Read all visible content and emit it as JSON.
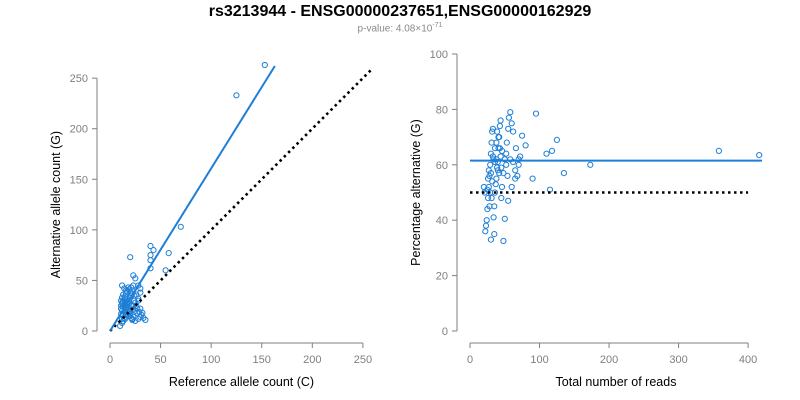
{
  "title": "rs3213944 - ENSG00000237651,ENSG00000162929",
  "subtitle": {
    "prefix": "p-value: 4.08×10",
    "exponent": "-71"
  },
  "colors": {
    "points": "#1e7fd6",
    "fit_line": "#1e7fd6",
    "reference_line": "#000000",
    "axis": "#7f7f7f"
  },
  "chart_data": [
    {
      "type": "scatter",
      "xlabel": "Reference allele count (C)",
      "ylabel": "Alternative allele count (G)",
      "xlim": [
        0,
        260
      ],
      "ylim": [
        0,
        260
      ],
      "xticks": [
        0,
        50,
        100,
        150,
        200,
        250
      ],
      "yticks": [
        0,
        50,
        100,
        150,
        200,
        250
      ],
      "fit_line": {
        "x": [
          0,
          163
        ],
        "y": [
          0,
          262
        ],
        "style": "solid"
      },
      "reference_line": {
        "x": [
          0,
          260
        ],
        "y": [
          0,
          260
        ],
        "style": "dotted"
      },
      "points": [
        [
          153,
          263
        ],
        [
          125,
          233
        ],
        [
          70,
          103
        ],
        [
          58,
          77
        ],
        [
          55,
          60
        ],
        [
          40,
          84
        ],
        [
          43,
          80
        ],
        [
          40,
          75
        ],
        [
          40,
          70
        ],
        [
          40,
          62
        ],
        [
          20,
          73
        ],
        [
          23,
          55
        ],
        [
          25,
          52
        ],
        [
          28,
          45
        ],
        [
          30,
          42
        ],
        [
          30,
          38
        ],
        [
          28,
          32
        ],
        [
          25,
          28
        ],
        [
          22,
          25
        ],
        [
          20,
          20
        ],
        [
          18,
          15
        ],
        [
          15,
          12
        ],
        [
          13,
          10
        ],
        [
          12,
          8
        ],
        [
          10,
          5
        ],
        [
          12,
          45
        ],
        [
          14,
          42
        ],
        [
          16,
          40
        ],
        [
          18,
          43
        ],
        [
          20,
          38
        ],
        [
          22,
          40
        ],
        [
          24,
          35
        ],
        [
          26,
          36
        ],
        [
          28,
          30
        ],
        [
          30,
          22
        ],
        [
          32,
          18
        ],
        [
          30,
          14
        ],
        [
          28,
          12
        ],
        [
          25,
          10
        ],
        [
          22,
          12
        ],
        [
          20,
          15
        ],
        [
          18,
          18
        ],
        [
          16,
          22
        ],
        [
          14,
          25
        ],
        [
          12,
          28
        ],
        [
          11,
          30
        ],
        [
          12,
          33
        ],
        [
          13,
          36
        ],
        [
          15,
          32
        ],
        [
          17,
          30
        ],
        [
          19,
          27
        ],
        [
          21,
          25
        ],
        [
          23,
          22
        ],
        [
          25,
          20
        ],
        [
          27,
          18
        ],
        [
          13,
          15
        ],
        [
          14,
          13
        ],
        [
          15,
          18
        ],
        [
          16,
          16
        ],
        [
          12,
          20
        ],
        [
          11,
          22
        ],
        [
          13,
          24
        ],
        [
          14,
          26
        ],
        [
          15,
          28
        ],
        [
          16,
          29
        ],
        [
          17,
          24
        ],
        [
          18,
          21
        ],
        [
          19,
          19
        ],
        [
          20,
          17
        ],
        [
          21,
          13
        ],
        [
          22,
          11
        ],
        [
          23,
          14
        ],
        [
          11,
          17
        ],
        [
          12,
          12
        ],
        [
          14,
          19
        ],
        [
          15,
          21
        ],
        [
          16,
          23
        ],
        [
          17,
          26
        ],
        [
          18,
          28
        ],
        [
          19,
          31
        ],
        [
          20,
          33
        ],
        [
          21,
          35
        ],
        [
          22,
          37
        ],
        [
          24,
          30
        ],
        [
          26,
          25
        ],
        [
          27,
          22
        ],
        [
          29,
          19
        ],
        [
          31,
          16
        ],
        [
          33,
          13
        ],
        [
          35,
          11
        ],
        [
          11,
          25
        ],
        [
          12,
          27
        ],
        [
          13,
          29
        ],
        [
          14,
          31
        ],
        [
          15,
          34
        ],
        [
          16,
          37
        ],
        [
          17,
          39
        ],
        [
          19,
          41
        ],
        [
          21,
          43
        ],
        [
          23,
          45
        ]
      ]
    },
    {
      "type": "scatter",
      "xlabel": "Total number of reads",
      "ylabel": "Percentage alternative (G)",
      "xlim": [
        0,
        420
      ],
      "ylim": [
        0,
        100
      ],
      "xticks": [
        0,
        100,
        200,
        300,
        400
      ],
      "yticks": [
        0,
        20,
        40,
        60,
        80,
        100
      ],
      "fit_line": {
        "x": [
          0,
          420
        ],
        "y": [
          61.5,
          61.5
        ],
        "style": "solid"
      },
      "reference_line": {
        "x": [
          0,
          400
        ],
        "y": [
          50,
          50
        ],
        "style": "dotted"
      },
      "points": [
        [
          416,
          63.5
        ],
        [
          358,
          65
        ],
        [
          173,
          60
        ],
        [
          135,
          57
        ],
        [
          125,
          69
        ],
        [
          118,
          65
        ],
        [
          115,
          51
        ],
        [
          110,
          64
        ],
        [
          95,
          78.5
        ],
        [
          90,
          55
        ],
        [
          80,
          67
        ],
        [
          75,
          70.5
        ],
        [
          72,
          63
        ],
        [
          70,
          60
        ],
        [
          68,
          56
        ],
        [
          65,
          58
        ],
        [
          62,
          72
        ],
        [
          60,
          75
        ],
        [
          58,
          79
        ],
        [
          56,
          77
        ],
        [
          55,
          73
        ],
        [
          53,
          68
        ],
        [
          52,
          64
        ],
        [
          50,
          62
        ],
        [
          48,
          57
        ],
        [
          46,
          52
        ],
        [
          45,
          48
        ],
        [
          44,
          76
        ],
        [
          43,
          74
        ],
        [
          42,
          70
        ],
        [
          41,
          66
        ],
        [
          40,
          61
        ],
        [
          39,
          59
        ],
        [
          38,
          55
        ],
        [
          37,
          53
        ],
        [
          36,
          50
        ],
        [
          35,
          45
        ],
        [
          34,
          41
        ],
        [
          33,
          73
        ],
        [
          32,
          72
        ],
        [
          31,
          68
        ],
        [
          30,
          64
        ],
        [
          29,
          60
        ],
        [
          28,
          56
        ],
        [
          27,
          52
        ],
        [
          26,
          48
        ],
        [
          25,
          44
        ],
        [
          24,
          40
        ],
        [
          23,
          38
        ],
        [
          22,
          36
        ],
        [
          21,
          50
        ],
        [
          20,
          52
        ],
        [
          30,
          33
        ],
        [
          35,
          35
        ],
        [
          48,
          32.5
        ],
        [
          50,
          40.5
        ],
        [
          55,
          47
        ],
        [
          60,
          52
        ],
        [
          65,
          55
        ],
        [
          70,
          62
        ],
        [
          33,
          63
        ],
        [
          36,
          61
        ],
        [
          38,
          62
        ],
        [
          40,
          58
        ],
        [
          42,
          57
        ],
        [
          44,
          63
        ],
        [
          46,
          65
        ],
        [
          28,
          45
        ],
        [
          27,
          58
        ],
        [
          30,
          57
        ],
        [
          32,
          54
        ],
        [
          34,
          62
        ],
        [
          36,
          66
        ],
        [
          38,
          68
        ],
        [
          25,
          51
        ],
        [
          26,
          55
        ],
        [
          29,
          50
        ],
        [
          31,
          48
        ],
        [
          52,
          60
        ],
        [
          58,
          62
        ],
        [
          62,
          61
        ],
        [
          66,
          66
        ],
        [
          54,
          56
        ],
        [
          45,
          59
        ],
        [
          43,
          66
        ],
        [
          41,
          70
        ],
        [
          39,
          72
        ]
      ]
    }
  ]
}
